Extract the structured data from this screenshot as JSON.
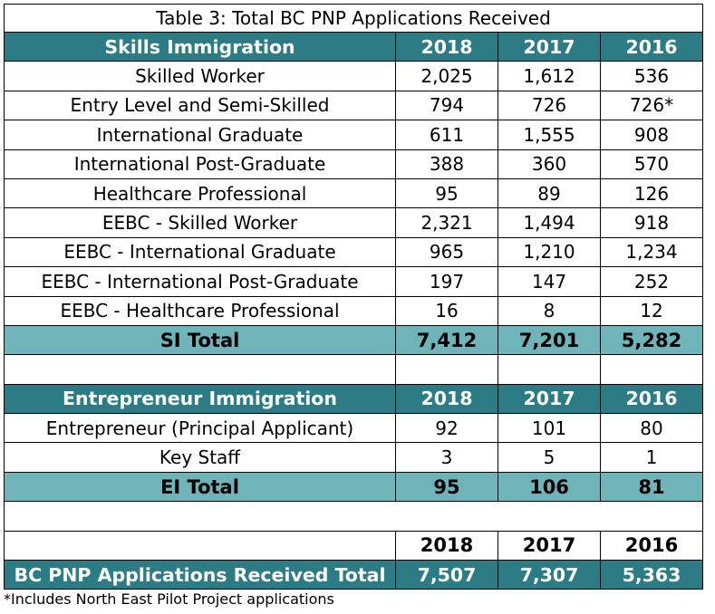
{
  "title": "Table 3: Total BC PNP Applications Received",
  "skills": {
    "header": [
      "Skills Immigration",
      "2018",
      "2017",
      "2016"
    ],
    "rows": [
      [
        "Skilled Worker",
        "2,025",
        "1,612",
        "536"
      ],
      [
        "Entry Level and Semi-Skilled",
        "794",
        "726",
        "726*"
      ],
      [
        "International Graduate",
        "611",
        "1,555",
        "908"
      ],
      [
        "International Post-Graduate",
        "388",
        "360",
        "570"
      ],
      [
        "Healthcare Professional",
        "95",
        "89",
        "126"
      ],
      [
        "EEBC - Skilled Worker",
        "2,321",
        "1,494",
        "918"
      ],
      [
        "EEBC - International Graduate",
        "965",
        "1,210",
        "1,234"
      ],
      [
        "EEBC - International Post-Graduate",
        "197",
        "147",
        "252"
      ],
      [
        "EEBC - Healthcare Professional",
        "16",
        "8",
        "12"
      ]
    ],
    "total": [
      "SI Total",
      "7,412",
      "7,201",
      "5,282"
    ]
  },
  "entrepreneur": {
    "header": [
      "Entrepreneur Immigration",
      "2018",
      "2017",
      "2016"
    ],
    "rows": [
      [
        "Entrepreneur (Principal Applicant)",
        "92",
        "101",
        "80"
      ],
      [
        "Key Staff",
        "3",
        "5",
        "1"
      ]
    ],
    "total": [
      "EI Total",
      "95",
      "106",
      "81"
    ]
  },
  "grand": {
    "header": [
      "",
      "2018",
      "2017",
      "2016"
    ],
    "total": [
      "BC PNP Applications Received Total",
      "7,507",
      "7,307",
      "5,363"
    ]
  },
  "footnote": "*Includes North East Pilot Project applications",
  "colors": {
    "header_bg": "#2c7c86",
    "total_bg": "#6eb4b9"
  }
}
